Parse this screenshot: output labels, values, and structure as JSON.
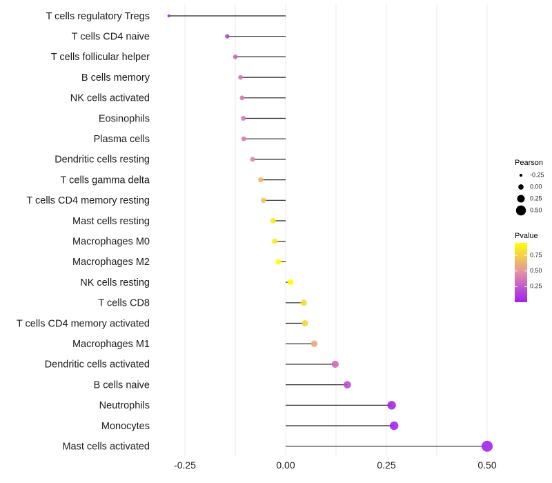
{
  "chart_data": {
    "type": "lollipop",
    "title": "",
    "xlabel": "",
    "ylabel": "",
    "xlim": [
      -0.3,
      0.52
    ],
    "xticks": [
      -0.25,
      0.0,
      0.25,
      0.5
    ],
    "xtick_labels": [
      "-0.25",
      "0.00",
      "0.25",
      "0.50"
    ],
    "grid": true,
    "categories": [
      "T cells regulatory  Tregs",
      "T cells CD4 naive",
      "T cells follicular helper",
      "B cells memory",
      "NK cells activated",
      "Eosinophils",
      "Plasma cells",
      "Dendritic cells resting",
      "T cells gamma delta",
      "T cells CD4 memory resting",
      "Mast cells resting",
      "Macrophages M0",
      "Macrophages M2",
      "NK cells resting",
      "T cells CD8",
      "T cells CD4 memory activated",
      "Macrophages M1",
      "Dendritic cells activated",
      "B cells naive",
      "Neutrophils",
      "Monocytes",
      "Mast cells activated"
    ],
    "pearson": [
      -0.29,
      -0.145,
      -0.125,
      -0.112,
      -0.108,
      -0.105,
      -0.104,
      -0.082,
      -0.062,
      -0.055,
      -0.031,
      -0.027,
      -0.018,
      0.012,
      0.045,
      0.048,
      0.071,
      0.123,
      0.153,
      0.263,
      0.269,
      0.5
    ],
    "pvalue": [
      0.0,
      0.15,
      0.3,
      0.36,
      0.38,
      0.38,
      0.4,
      0.45,
      0.66,
      0.71,
      0.88,
      0.88,
      0.96,
      1.0,
      0.8,
      0.77,
      0.58,
      0.32,
      0.2,
      0.03,
      0.03,
      0.02
    ],
    "legend": {
      "size_title": "Pearson",
      "size_breaks": [
        -0.25,
        0.0,
        0.25,
        0.5
      ],
      "size_labels": [
        "-0.25",
        "0.00",
        "0.25",
        "0.50"
      ],
      "color_title": "Pvalue",
      "color_breaks": [
        0.25,
        0.5,
        0.75
      ],
      "color_labels": [
        "0.25",
        "0.50",
        "0.75"
      ],
      "color_range": [
        0.0,
        0.95
      ],
      "placement": "right"
    },
    "colors": {
      "low": "#a020f0",
      "mid": "#e48fa8",
      "high": "#ffff00"
    }
  }
}
